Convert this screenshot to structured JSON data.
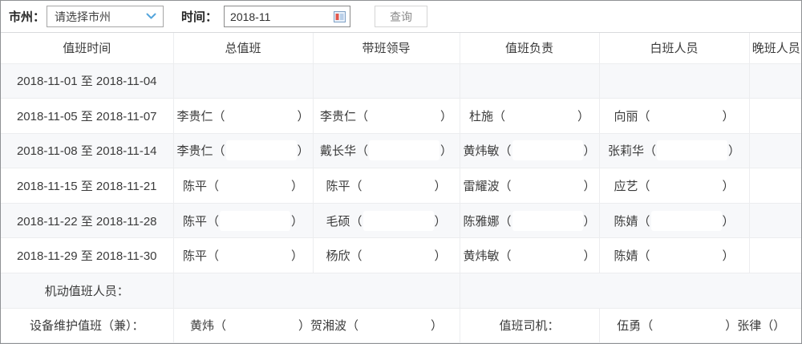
{
  "toolbar": {
    "region_label": "市州：",
    "region_select_value": "请选择市州",
    "time_label": "时间：",
    "time_value": "2018-11",
    "search_button_label": "查询"
  },
  "colors": {
    "accent_blue": "#54a5dc",
    "stripe_background": "#f7f8fa",
    "grid_line": "#ecedef"
  },
  "table": {
    "headers": [
      "值班时间",
      "总值班",
      "带班领导",
      "值班负责",
      "白班人员",
      "晚班人员"
    ],
    "rows": [
      {
        "cells": [
          {
            "name": "duty-date-cell",
            "segs": [
              {
                "text": "2018-11-01 至 2018-11-04"
              }
            ]
          },
          {
            "name": "chief-duty-cell",
            "segs": []
          },
          {
            "name": "leader-cell",
            "segs": []
          },
          {
            "name": "duty-charge-cell",
            "segs": []
          },
          {
            "name": "day-shift-cell",
            "segs": []
          },
          {
            "name": "night-shift-cell",
            "segs": []
          }
        ]
      },
      {
        "cells": [
          {
            "name": "duty-date-cell",
            "segs": [
              {
                "text": "2018-11-05 至 2018-11-07"
              }
            ]
          },
          {
            "name": "chief-duty-cell",
            "segs": [
              {
                "text": "李贵仁（"
              },
              {
                "blank": true
              },
              {
                "text": "）"
              }
            ]
          },
          {
            "name": "leader-cell",
            "segs": [
              {
                "text": "李贵仁（"
              },
              {
                "blank": true
              },
              {
                "text": "）"
              }
            ]
          },
          {
            "name": "duty-charge-cell",
            "segs": [
              {
                "text": "杜施（"
              },
              {
                "blank": true
              },
              {
                "text": "）"
              }
            ]
          },
          {
            "name": "day-shift-cell",
            "segs": [
              {
                "text": "向丽（"
              },
              {
                "blank": true
              },
              {
                "text": "）"
              }
            ]
          },
          {
            "name": "night-shift-cell",
            "segs": []
          }
        ]
      },
      {
        "cells": [
          {
            "name": "duty-date-cell",
            "segs": [
              {
                "text": "2018-11-08 至 2018-11-14"
              }
            ]
          },
          {
            "name": "chief-duty-cell",
            "segs": [
              {
                "text": "李贵仁（"
              },
              {
                "blank": true
              },
              {
                "text": "）"
              }
            ]
          },
          {
            "name": "leader-cell",
            "segs": [
              {
                "text": "戴长华（"
              },
              {
                "blank": true
              },
              {
                "text": "）"
              }
            ]
          },
          {
            "name": "duty-charge-cell",
            "segs": [
              {
                "text": "黄炜敏（"
              },
              {
                "blank": true
              },
              {
                "text": "）"
              }
            ]
          },
          {
            "name": "day-shift-cell",
            "segs": [
              {
                "text": "张莉华（"
              },
              {
                "blank": true
              },
              {
                "text": "）"
              }
            ]
          },
          {
            "name": "night-shift-cell",
            "segs": []
          }
        ]
      },
      {
        "cells": [
          {
            "name": "duty-date-cell",
            "segs": [
              {
                "text": "2018-11-15 至 2018-11-21"
              }
            ]
          },
          {
            "name": "chief-duty-cell",
            "segs": [
              {
                "text": "陈平（"
              },
              {
                "blank": true
              },
              {
                "text": "）"
              }
            ]
          },
          {
            "name": "leader-cell",
            "segs": [
              {
                "text": "陈平（"
              },
              {
                "blank": true
              },
              {
                "text": "）"
              }
            ]
          },
          {
            "name": "duty-charge-cell",
            "segs": [
              {
                "text": "雷耀波（"
              },
              {
                "blank": true
              },
              {
                "text": "）"
              }
            ]
          },
          {
            "name": "day-shift-cell",
            "segs": [
              {
                "text": "应艺（"
              },
              {
                "blank": true
              },
              {
                "text": "）"
              }
            ]
          },
          {
            "name": "night-shift-cell",
            "segs": []
          }
        ]
      },
      {
        "cells": [
          {
            "name": "duty-date-cell",
            "segs": [
              {
                "text": "2018-11-22 至 2018-11-28"
              }
            ]
          },
          {
            "name": "chief-duty-cell",
            "segs": [
              {
                "text": "陈平（"
              },
              {
                "blank": true
              },
              {
                "text": "）"
              }
            ]
          },
          {
            "name": "leader-cell",
            "segs": [
              {
                "text": "毛硕（"
              },
              {
                "blank": true
              },
              {
                "text": "）"
              }
            ]
          },
          {
            "name": "duty-charge-cell",
            "segs": [
              {
                "text": "陈雅娜（"
              },
              {
                "blank": true
              },
              {
                "text": "）"
              }
            ]
          },
          {
            "name": "day-shift-cell",
            "segs": [
              {
                "text": "陈婧（"
              },
              {
                "blank": true
              },
              {
                "text": "）"
              }
            ]
          },
          {
            "name": "night-shift-cell",
            "segs": []
          }
        ]
      },
      {
        "cells": [
          {
            "name": "duty-date-cell",
            "segs": [
              {
                "text": "2018-11-29 至 2018-11-30"
              }
            ]
          },
          {
            "name": "chief-duty-cell",
            "segs": [
              {
                "text": "陈平（"
              },
              {
                "blank": true
              },
              {
                "text": "）"
              }
            ]
          },
          {
            "name": "leader-cell",
            "segs": [
              {
                "text": "杨欣（"
              },
              {
                "blank": true
              },
              {
                "text": "）"
              }
            ]
          },
          {
            "name": "duty-charge-cell",
            "segs": [
              {
                "text": "黄炜敏（"
              },
              {
                "blank": true
              },
              {
                "text": "）"
              }
            ]
          },
          {
            "name": "day-shift-cell",
            "segs": [
              {
                "text": "陈婧（"
              },
              {
                "blank": true
              },
              {
                "text": "）"
              }
            ]
          },
          {
            "name": "night-shift-cell",
            "segs": []
          }
        ]
      },
      {
        "cells": [
          {
            "name": "flexible-duty-label-cell",
            "segs": [
              {
                "text": "机动值班人员："
              }
            ]
          },
          {
            "name": "flexible-duty-cell",
            "span": 2,
            "segs": []
          },
          {
            "name": "flexible-duty-cell",
            "span": 3,
            "segs": []
          }
        ]
      },
      {
        "cells": [
          {
            "name": "maintenance-duty-label-cell",
            "segs": [
              {
                "text": "设备维护值班（兼）："
              }
            ]
          },
          {
            "name": "maintenance-duty-cell",
            "span": 2,
            "segs": [
              {
                "text": "黄炜（"
              },
              {
                "blank": true
              },
              {
                "text": "）贺湘波（"
              },
              {
                "blank": true
              },
              {
                "text": "）"
              }
            ]
          },
          {
            "name": "driver-label-cell",
            "segs": [
              {
                "text": "值班司机："
              }
            ]
          },
          {
            "name": "driver-cell",
            "span": 2,
            "segs": [
              {
                "text": "伍勇（"
              },
              {
                "blank": true
              },
              {
                "text": "）张律（）"
              }
            ]
          }
        ]
      }
    ]
  }
}
